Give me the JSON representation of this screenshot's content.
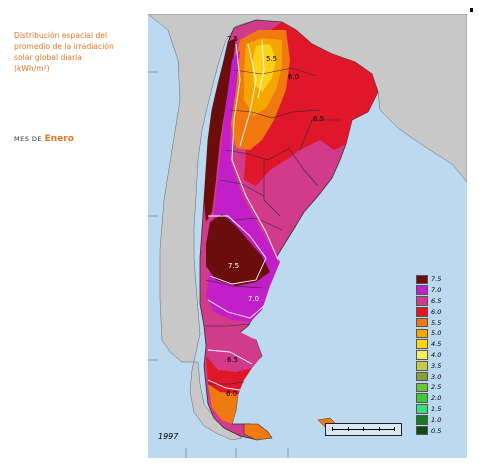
{
  "title": {
    "lines": [
      "Distribución espacial del",
      "promedio de la irradiación",
      "solar global diaria",
      "(kWh/m²)"
    ]
  },
  "month": {
    "prefix": "MES DE",
    "name": "Enero"
  },
  "year": "1997",
  "colors": {
    "ocean": "#bcd9f0",
    "land": "#c8c8c8",
    "accent": "#e87722"
  },
  "legend": [
    {
      "label": "7.5",
      "color": "#6b0d0d"
    },
    {
      "label": "7.0",
      "color": "#c21fc9"
    },
    {
      "label": "6.5",
      "color": "#d23a8a"
    },
    {
      "label": "6.0",
      "color": "#e0162a"
    },
    {
      "label": "5.5",
      "color": "#f07a10"
    },
    {
      "label": "5.0",
      "color": "#f7a600"
    },
    {
      "label": "4.5",
      "color": "#ffd21a"
    },
    {
      "label": "4.0",
      "color": "#f5f060"
    },
    {
      "label": "3.5",
      "color": "#c9c94a"
    },
    {
      "label": "3.0",
      "color": "#8aa13a"
    },
    {
      "label": "2.5",
      "color": "#6ec13d"
    },
    {
      "label": "2.0",
      "color": "#3fc83b"
    },
    {
      "label": "1.5",
      "color": "#33e07a"
    },
    {
      "label": "1.0",
      "color": "#167a2a"
    },
    {
      "label": "0.5",
      "color": "#0b4a15"
    }
  ],
  "contour_labels": [
    {
      "text": "7.5"
    },
    {
      "text": "5.5"
    },
    {
      "text": "6.0"
    },
    {
      "text": "6.5"
    },
    {
      "text": "7.5"
    },
    {
      "text": "7.0"
    },
    {
      "text": "6.5"
    },
    {
      "text": "6.0"
    }
  ]
}
